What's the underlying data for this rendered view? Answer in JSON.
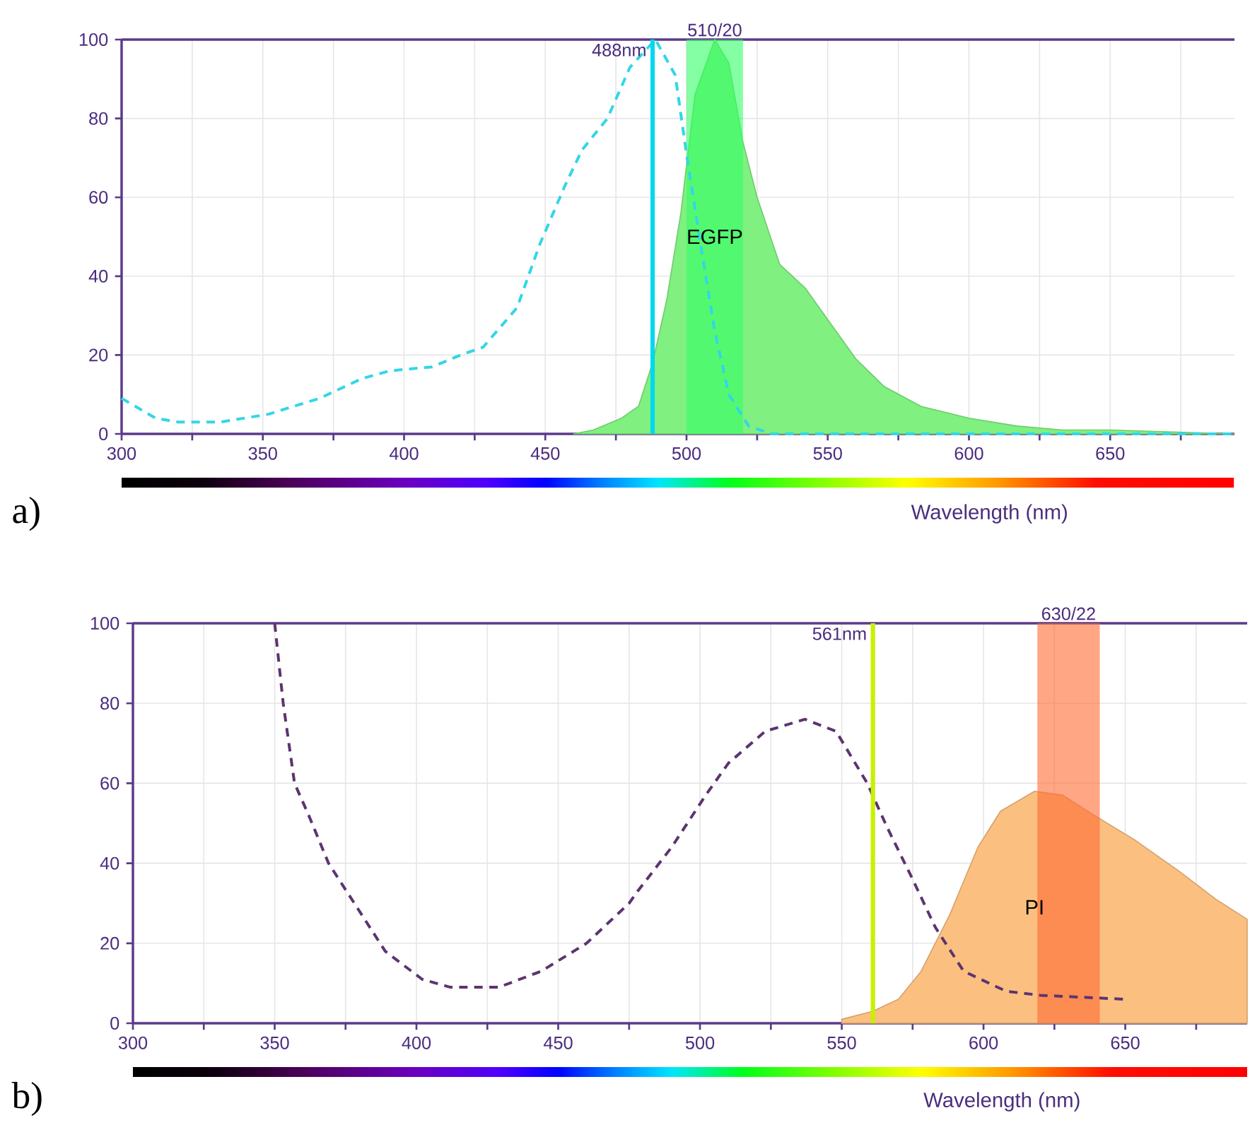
{
  "chart_data": [
    {
      "type": "area",
      "xlabel": "Wavelength (nm)",
      "xlim": [
        300,
        694
      ],
      "ylim": [
        0,
        100
      ],
      "xticks": [
        300,
        {
          "value": 325,
          "label": null
        },
        350,
        {
          "value": 375,
          "label": null
        },
        400,
        {
          "value": 425,
          "label": null
        },
        450,
        {
          "value": 475,
          "label": null
        },
        500,
        {
          "value": 525,
          "label": null
        },
        550,
        {
          "value": 575,
          "label": null
        },
        600,
        {
          "value": 625,
          "label": null
        },
        650,
        {
          "value": 675,
          "label": null
        }
      ],
      "yticks": [
        0,
        20,
        40,
        60,
        80,
        100
      ],
      "grid": true,
      "series": [
        {
          "name": "EGFP",
          "color": "#80f080",
          "x": [
            460,
            467,
            477,
            483,
            488,
            493,
            498,
            503,
            510,
            515,
            520,
            525,
            533,
            542,
            550,
            560,
            570,
            583,
            600,
            617,
            633,
            650,
            694
          ],
          "values": [
            0,
            1,
            4,
            7,
            18,
            34,
            56,
            86,
            100,
            94,
            74,
            60,
            43,
            37,
            29,
            19,
            12,
            7,
            4,
            2,
            1,
            1,
            0
          ]
        },
        {
          "type": "line",
          "line_style": "dashed",
          "color": "#33d6e6",
          "x": [
            300,
            312,
            320,
            335,
            352,
            370,
            385,
            395,
            410,
            420,
            428,
            440,
            448,
            457,
            463,
            472,
            480,
            489,
            496,
            500,
            505,
            510,
            515,
            522,
            530,
            550,
            600,
            694
          ],
          "values": [
            9,
            4,
            3,
            3,
            5,
            9,
            14,
            16,
            17,
            20,
            22,
            32,
            48,
            63,
            72,
            80,
            93,
            100,
            91,
            71,
            48,
            26,
            10,
            2,
            0,
            0,
            0,
            0
          ]
        }
      ],
      "ref_lines": [
        {
          "axis": "x",
          "value": 488,
          "label": "488nm",
          "color": "#00d8f0"
        }
      ],
      "bands": [
        {
          "axis": "x",
          "from": 500,
          "to": 520,
          "label": "510/20",
          "color": "#33ff66"
        }
      ],
      "annotations": [
        "a)"
      ]
    },
    {
      "type": "area",
      "xlabel": "Wavelength (nm)",
      "xlim": [
        300,
        693
      ],
      "ylim": [
        0,
        100
      ],
      "xticks": [
        300,
        {
          "value": 325,
          "label": null
        },
        350,
        {
          "value": 375,
          "label": null
        },
        400,
        {
          "value": 425,
          "label": null
        },
        450,
        {
          "value": 475,
          "label": null
        },
        500,
        {
          "value": 525,
          "label": null
        },
        550,
        {
          "value": 575,
          "label": null
        },
        600,
        {
          "value": 625,
          "label": null
        },
        650,
        {
          "value": 675,
          "label": null
        }
      ],
      "yticks": [
        0,
        20,
        40,
        60,
        80,
        100
      ],
      "grid": true,
      "series": [
        {
          "name": "PI",
          "color": "#fbbf80",
          "x": [
            550,
            561,
            570,
            578,
            588,
            598,
            606,
            618,
            628,
            639,
            653,
            669,
            682,
            693
          ],
          "values": [
            1,
            3,
            6,
            13,
            27,
            44,
            53,
            58,
            57,
            52,
            46,
            38,
            31,
            26
          ]
        },
        {
          "type": "line",
          "line_style": "dashed",
          "color": "#5c3470",
          "x": [
            350,
            353,
            357,
            362,
            369,
            379,
            389,
            402,
            412,
            420,
            429,
            444,
            460,
            475,
            478,
            490,
            502,
            510,
            523,
            537,
            548,
            559,
            566,
            575,
            583,
            593,
            608,
            620,
            650
          ],
          "values": [
            100,
            80,
            60,
            52,
            40,
            29,
            18,
            11,
            9,
            9,
            9,
            13,
            20,
            30,
            33,
            44,
            57,
            65,
            73,
            76,
            73,
            60,
            49,
            36,
            24,
            13,
            8,
            7,
            6
          ]
        }
      ],
      "ref_lines": [
        {
          "axis": "x",
          "value": 561,
          "label": "561nm",
          "color": "#c8f000"
        }
      ],
      "bands": [
        {
          "axis": "x",
          "from": 619,
          "to": 641,
          "label": "630/22",
          "color": "#ff6a33"
        }
      ],
      "annotations": [
        "b)"
      ]
    }
  ]
}
